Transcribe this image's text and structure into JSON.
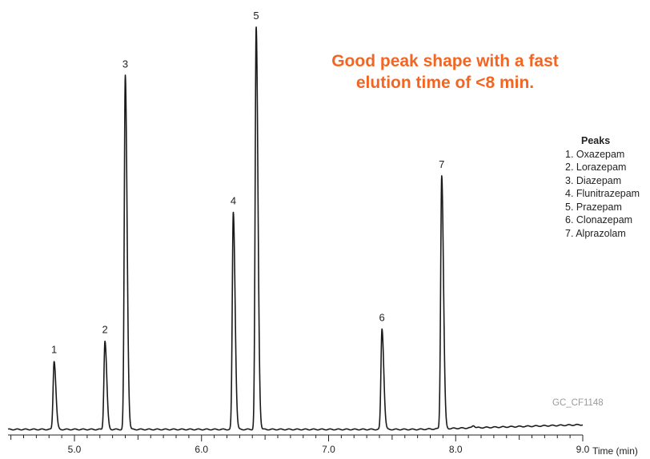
{
  "annotation": {
    "line1": "Good peak shape with a fast",
    "line2": "elution time of <8 min.",
    "color": "#f26522"
  },
  "legend": {
    "title": "Peaks",
    "items": [
      "1. Oxazepam",
      "2. Lorazepam",
      "3. Diazepam",
      "4. Flunitrazepam",
      "5. Prazepam",
      "6. Clonazepam",
      "7. Alprazolam"
    ]
  },
  "watermark": "GC_CF1148",
  "chart_data": {
    "type": "line",
    "title": "",
    "xlabel": "Time (min)",
    "ylabel": "",
    "xlim": [
      4.5,
      9.0
    ],
    "ylim": [
      0,
      100
    ],
    "x_ticks": [
      "5.0",
      "6.0",
      "7.0",
      "8.0",
      "9.0"
    ],
    "x_tick_values": [
      5.0,
      6.0,
      7.0,
      8.0,
      9.0
    ],
    "baseline": 0,
    "line_color": "#1a1a1a",
    "peaks": [
      {
        "label": "1",
        "compound": "Oxazepam",
        "time": 4.84,
        "height": 17
      },
      {
        "label": "2",
        "compound": "Lorazepam",
        "time": 5.24,
        "height": 22
      },
      {
        "label": "3",
        "compound": "Diazepam",
        "time": 5.4,
        "height": 88
      },
      {
        "label": "4",
        "compound": "Flunitrazepam",
        "time": 6.25,
        "height": 54
      },
      {
        "label": "5",
        "compound": "Prazepam",
        "time": 6.43,
        "height": 100
      },
      {
        "label": "6",
        "compound": "Clonazepam",
        "time": 7.42,
        "height": 25
      },
      {
        "label": "7",
        "compound": "Alprazolam",
        "time": 7.89,
        "height": 63
      }
    ]
  }
}
